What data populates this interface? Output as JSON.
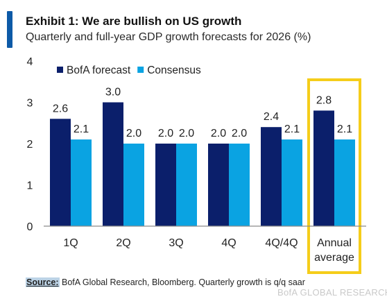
{
  "header": {
    "title": "Exhibit 1: We are bullish on US growth",
    "subtitle": "Quarterly and full-year GDP growth forecasts for 2026 (%)"
  },
  "colors": {
    "accent": "#0d5aa7",
    "bofa": "#0b1f6b",
    "consensus": "#0aa3e2",
    "highlight": "#f5cd1a"
  },
  "chart_data": {
    "type": "bar",
    "categories": [
      "1Q",
      "2Q",
      "3Q",
      "4Q",
      "4Q/4Q",
      "Annual average"
    ],
    "series": [
      {
        "name": "BofA forecast",
        "values": [
          2.6,
          3.0,
          2.0,
          2.0,
          2.4,
          2.8
        ],
        "labels": [
          "2.6",
          "3.0",
          "2.0",
          "2.0",
          "2.4",
          "2.8"
        ]
      },
      {
        "name": "Consensus",
        "values": [
          2.1,
          2.0,
          2.0,
          2.0,
          2.1,
          2.1
        ],
        "labels": [
          "2.1",
          "2.0",
          "2.0",
          "2.0",
          "2.1",
          "2.1"
        ]
      }
    ],
    "ylim": [
      0,
      4
    ],
    "yticks": [
      "0",
      "1",
      "2",
      "3",
      "4"
    ],
    "grid": false,
    "legend_position": "top-left",
    "highlighted_category": "Annual average"
  },
  "footer": {
    "source_label": "Source:",
    "source_text": " BofA Global Research, Bloomberg. Quarterly growth is q/q saar",
    "watermark": "BofA GLOBAL RESEARCH"
  }
}
